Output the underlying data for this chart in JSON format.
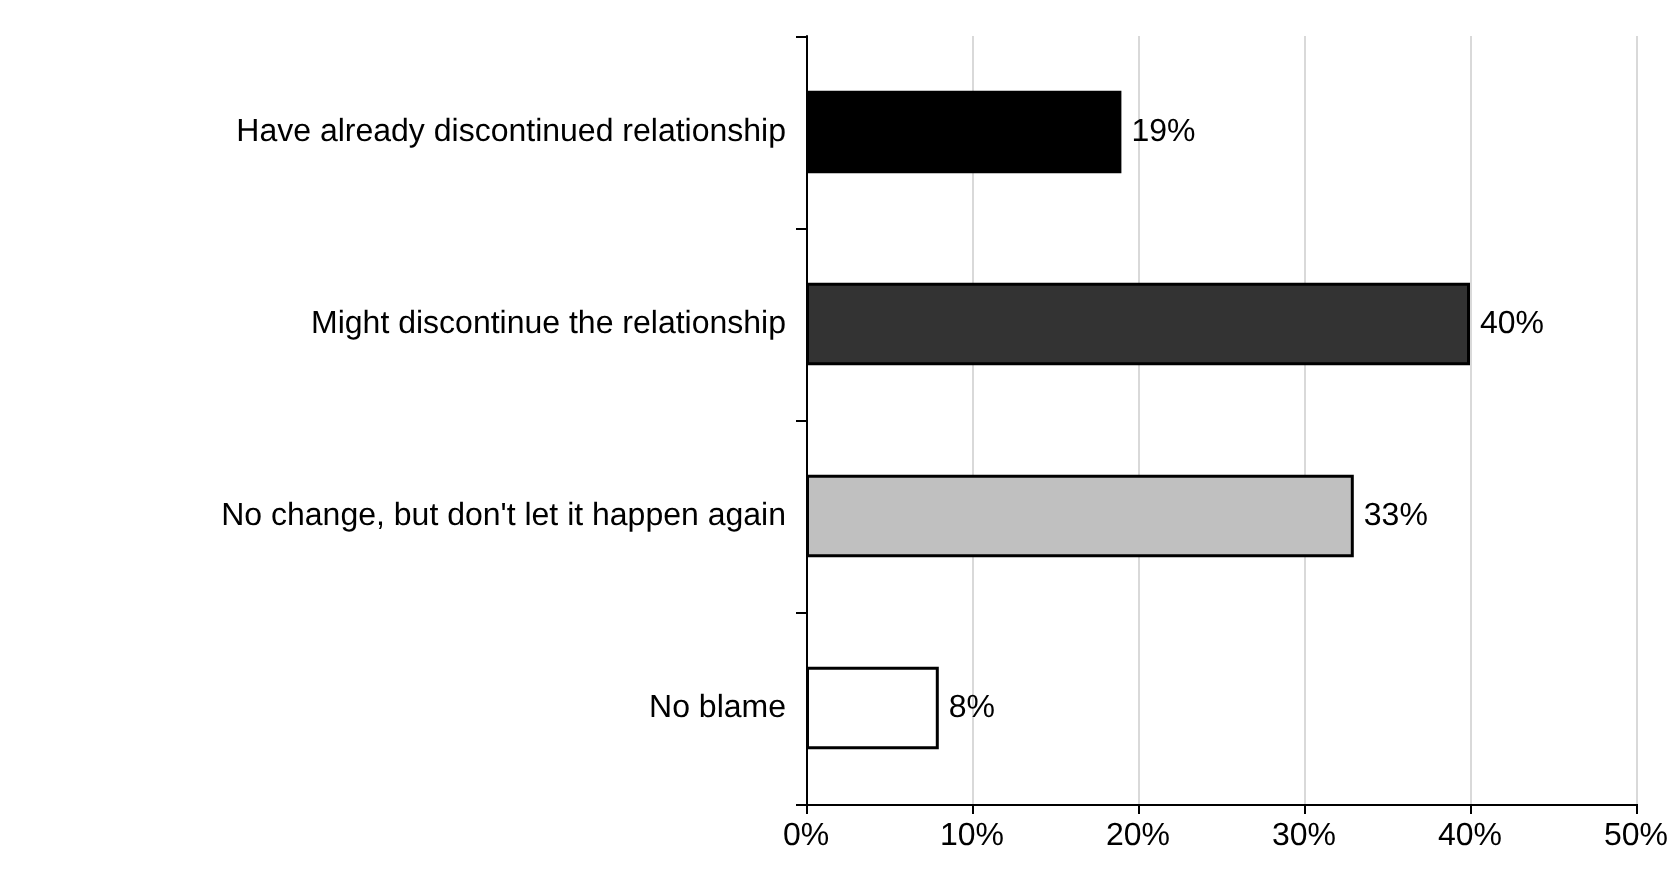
{
  "chart_data": {
    "type": "bar",
    "orientation": "horizontal",
    "categories": [
      "Have already discontinued relationship",
      "Might discontinue the relationship",
      "No change, but don't let it happen again",
      "No blame"
    ],
    "values": [
      19,
      40,
      33,
      8
    ],
    "colors": [
      "#000000",
      "#333333",
      "#c0c0c0",
      "#ffffff"
    ],
    "value_labels": [
      "19%",
      "40%",
      "33%",
      "8%"
    ],
    "xlim": [
      0,
      50
    ],
    "xticks": [
      {
        "value": 0,
        "label": "0%"
      },
      {
        "value": 10,
        "label": "10%"
      },
      {
        "value": 20,
        "label": "20%"
      },
      {
        "value": 30,
        "label": "30%"
      },
      {
        "value": 40,
        "label": "40%"
      },
      {
        "value": 50,
        "label": "50%"
      }
    ],
    "grid": "x"
  }
}
